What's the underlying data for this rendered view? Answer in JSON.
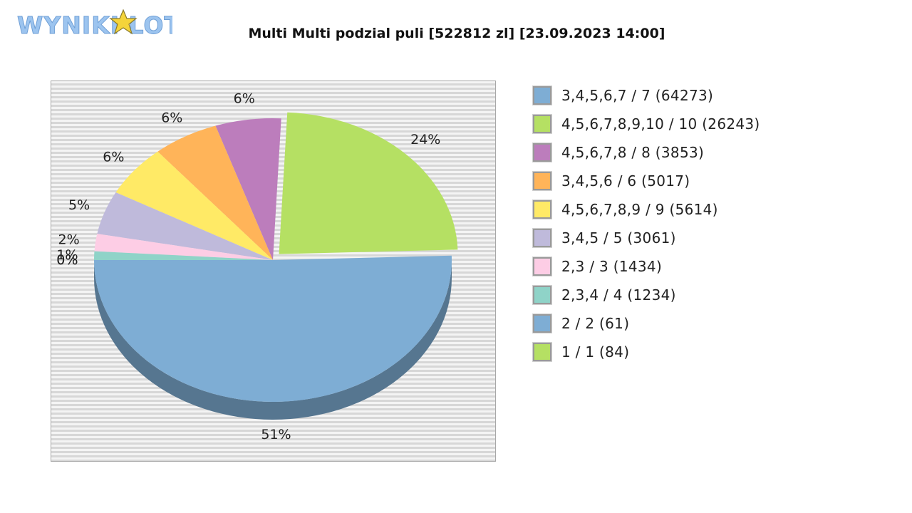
{
  "logo": {
    "text": "WYNIKI LOTTO"
  },
  "chart_data": {
    "type": "pie",
    "title": "Multi Multi podzial puli [522812 zl] [23.09.2023 14:00]",
    "start_angle_deg": 180,
    "slices": [
      {
        "label": "3,4,5,6,7 / 7 (64273)",
        "value": 51,
        "pct_label": "51%",
        "color": "#7eadd4"
      },
      {
        "label": "4,5,6,7,8,9,10 / 10 (26243)",
        "value": 24,
        "pct_label": "24%",
        "color": "#b5e063",
        "exploded": true
      },
      {
        "label": "4,5,6,7,8 / 8 (3853)",
        "value": 6,
        "pct_label": "6%",
        "color": "#bc7dbc"
      },
      {
        "label": "3,4,5,6 / 6 (5017)",
        "value": 6,
        "pct_label": "6%",
        "color": "#ffb459"
      },
      {
        "label": "4,5,6,7,8,9 / 9 (5614)",
        "value": 6,
        "pct_label": "6%",
        "color": "#ffea66"
      },
      {
        "label": "3,4,5 / 5 (3061)",
        "value": 5,
        "pct_label": "5%",
        "color": "#bfbadb"
      },
      {
        "label": "2,3 / 3 (1434)",
        "value": 2,
        "pct_label": "2%",
        "color": "#fdcde5"
      },
      {
        "label": "2,3,4 / 4 (1234)",
        "value": 1,
        "pct_label": "1%",
        "color": "#8fd3c8"
      },
      {
        "label": "2 / 2 (61)",
        "value": 0,
        "pct_label": "0%",
        "color": "#7eadd4"
      },
      {
        "label": "1 / 1 (84)",
        "value": 0,
        "pct_label": "0%",
        "color": "#b5e063"
      }
    ],
    "legend_position": "right"
  }
}
